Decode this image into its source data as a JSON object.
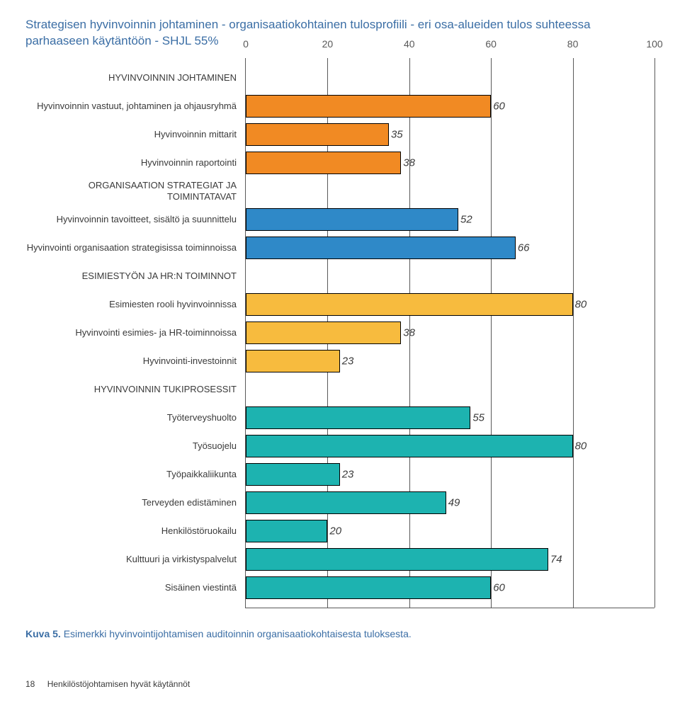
{
  "title": "Strategisen hyvinvoinnin johtaminen - organisaatiokohtainen tulosprofiili - eri osa-alueiden tulos suhteessa parhaaseen käytäntöön - SHJL 55%",
  "chart": {
    "type": "bar",
    "xlim": [
      0,
      100
    ],
    "xtick_step": 20,
    "xticks": [
      "0",
      "20",
      "40",
      "60",
      "80",
      "100"
    ],
    "background_color": "#ffffff",
    "grid_color": "#595959",
    "bar_border": "#000000",
    "label_fontsize": 13,
    "value_fontsize": 15,
    "value_fontstyle": "italic",
    "colors": {
      "orange": "#f18a23",
      "blue": "#2f89c8",
      "yellow": "#f7bb3e",
      "teal": "#1db3b0"
    },
    "rows": [
      {
        "label": "HYVINVOINNIN JOHTAMINEN",
        "value": null,
        "section": true
      },
      {
        "label": "Hyvinvoinnin vastuut, johtaminen ja ohjausryhmä",
        "value": 60,
        "color": "orange"
      },
      {
        "label": "Hyvinvoinnin mittarit",
        "value": 35,
        "color": "orange"
      },
      {
        "label": "Hyvinvoinnin raportointi",
        "value": 38,
        "color": "orange"
      },
      {
        "label": "ORGANISAATION STRATEGIAT JA TOIMINTATAVAT",
        "value": null,
        "section": true
      },
      {
        "label": "Hyvinvoinnin tavoitteet, sisältö ja suunnittelu",
        "value": 52,
        "color": "blue"
      },
      {
        "label": "Hyvinvointi organisaation strategisissa toiminnoissa",
        "value": 66,
        "color": "blue"
      },
      {
        "label": "ESIMIESTYÖN JA HR:N TOIMINNOT",
        "value": null,
        "section": true
      },
      {
        "label": "Esimiesten rooli hyvinvoinnissa",
        "value": 80,
        "color": "yellow"
      },
      {
        "label": "Hyvinvointi esimies- ja HR-toiminnoissa",
        "value": 38,
        "color": "yellow"
      },
      {
        "label": "Hyvinvointi-investoinnit",
        "value": 23,
        "color": "yellow"
      },
      {
        "label": "HYVINVOINNIN TUKIPROSESSIT",
        "value": null,
        "section": true
      },
      {
        "label": "Työterveyshuolto",
        "value": 55,
        "color": "teal"
      },
      {
        "label": "Työsuojelu",
        "value": 80,
        "color": "teal"
      },
      {
        "label": "Työpaikkaliikunta",
        "value": 23,
        "color": "teal"
      },
      {
        "label": "Terveyden edistäminen",
        "value": 49,
        "color": "teal"
      },
      {
        "label": "Henkilöstöruokailu",
        "value": 20,
        "color": "teal"
      },
      {
        "label": "Kulttuuri ja virkistyspalvelut",
        "value": 74,
        "color": "teal"
      },
      {
        "label": "Sisäinen viestintä",
        "value": 60,
        "color": "teal"
      }
    ]
  },
  "caption": {
    "bold": "Kuva 5.",
    "text": " Esimerkki hyvinvointijohtamisen auditoinnin organisaatiokohtaisesta tuloksesta."
  },
  "footer": {
    "page": "18",
    "doc": "Henkilöstöjohtamisen hyvät käytännöt"
  }
}
